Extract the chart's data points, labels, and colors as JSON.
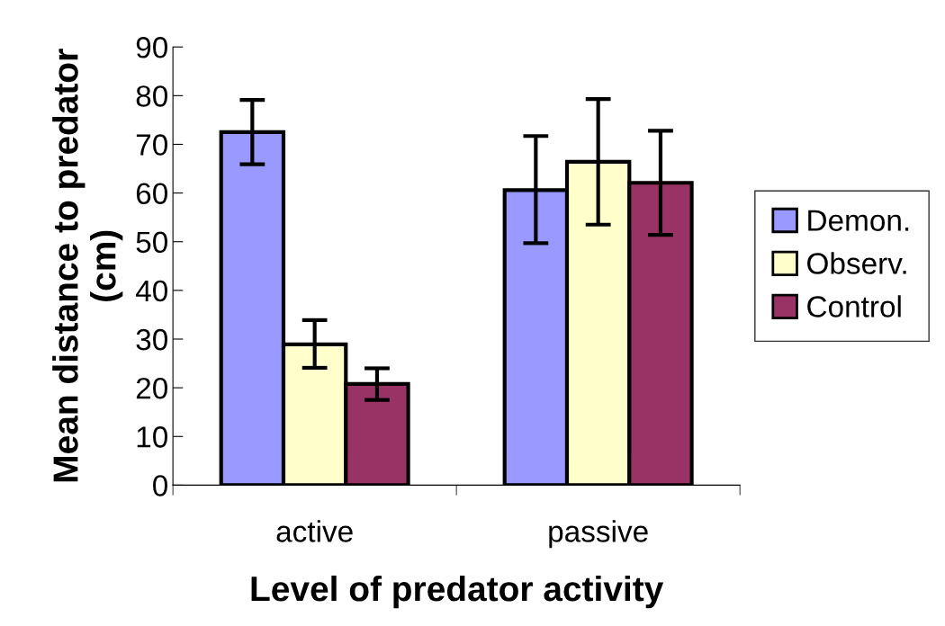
{
  "chart_data": {
    "type": "bar",
    "xlabel": "Level of predator activity",
    "ylabel": "Mean distance to predator\n(cm)",
    "categories": [
      "active",
      "passive"
    ],
    "series": [
      {
        "name": "Demon.",
        "color": "#9999ff",
        "values": [
          72.5,
          60.6
        ],
        "errors": [
          [
            65.9,
            79.1
          ],
          [
            49.7,
            71.7
          ]
        ]
      },
      {
        "name": "Observ.",
        "color": "#ffffcc",
        "values": [
          28.9,
          66.4
        ],
        "errors": [
          [
            24.1,
            33.9
          ],
          [
            53.5,
            79.3
          ]
        ]
      },
      {
        "name": "Control",
        "color": "#993366",
        "values": [
          20.8,
          62.1
        ],
        "errors": [
          [
            17.5,
            24.0
          ],
          [
            51.4,
            72.8
          ]
        ]
      }
    ],
    "ylim": [
      0,
      90
    ],
    "yticks": [
      0,
      10,
      20,
      30,
      40,
      50,
      60,
      70,
      80,
      90
    ],
    "grid": false,
    "legend": "right"
  }
}
